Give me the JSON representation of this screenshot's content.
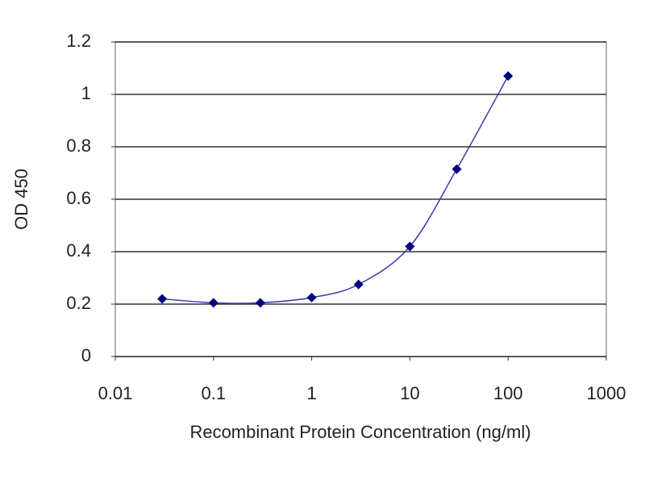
{
  "chart_data": {
    "type": "line",
    "xlabel": "Recombinant Protein Concentration (ng/ml)",
    "ylabel": "OD 450",
    "x": [
      0.03,
      0.1,
      0.3,
      1,
      3,
      10,
      30,
      100
    ],
    "values": [
      0.22,
      0.205,
      0.205,
      0.225,
      0.275,
      0.42,
      0.715,
      1.07
    ],
    "color": "#000080",
    "line_color": "#3a3ab0",
    "xlim": [
      0.01,
      1000
    ],
    "xticks": [
      0.01,
      0.1,
      1,
      10,
      100,
      1000
    ],
    "x_log": true,
    "ylim": [
      0,
      1.2
    ],
    "yticks": [
      0,
      0.2,
      0.4,
      0.6,
      0.8,
      1,
      1.2
    ],
    "grid": true
  }
}
